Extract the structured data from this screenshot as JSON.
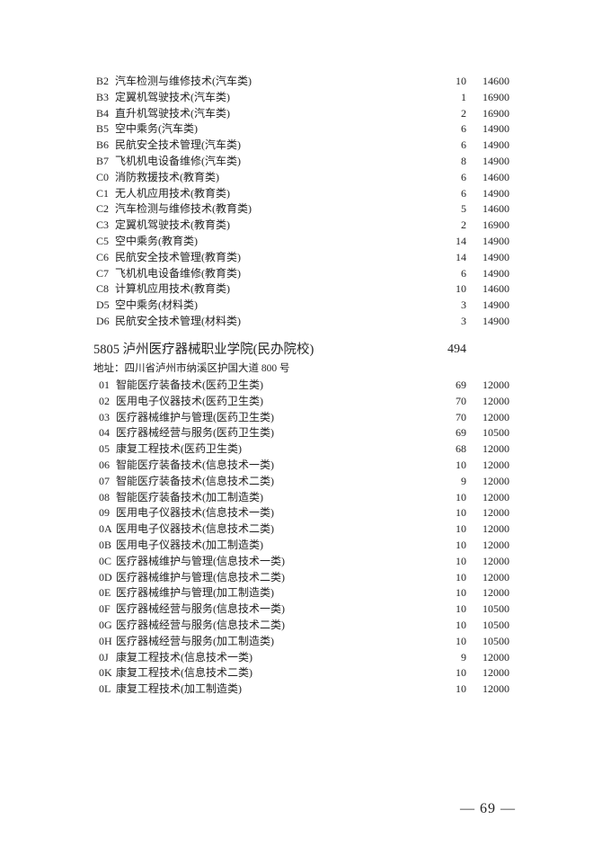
{
  "section_top": {
    "rows": [
      {
        "code": "B2",
        "name": "汽车检测与维修技术(汽车类)",
        "count": "10",
        "fee": "14600"
      },
      {
        "code": "B3",
        "name": "定翼机驾驶技术(汽车类)",
        "count": "1",
        "fee": "16900"
      },
      {
        "code": "B4",
        "name": "直升机驾驶技术(汽车类)",
        "count": "2",
        "fee": "16900"
      },
      {
        "code": "B5",
        "name": "空中乘务(汽车类)",
        "count": "6",
        "fee": "14900"
      },
      {
        "code": "B6",
        "name": "民航安全技术管理(汽车类)",
        "count": "6",
        "fee": "14900"
      },
      {
        "code": "B7",
        "name": "飞机机电设备维修(汽车类)",
        "count": "8",
        "fee": "14900"
      },
      {
        "code": "C0",
        "name": "消防救援技术(教育类)",
        "count": "6",
        "fee": "14600"
      },
      {
        "code": "C1",
        "name": "无人机应用技术(教育类)",
        "count": "6",
        "fee": "14900"
      },
      {
        "code": "C2",
        "name": "汽车检测与维修技术(教育类)",
        "count": "5",
        "fee": "14600"
      },
      {
        "code": "C3",
        "name": "定翼机驾驶技术(教育类)",
        "count": "2",
        "fee": "16900"
      },
      {
        "code": "C5",
        "name": "空中乘务(教育类)",
        "count": "14",
        "fee": "14900"
      },
      {
        "code": "C6",
        "name": "民航安全技术管理(教育类)",
        "count": "14",
        "fee": "14900"
      },
      {
        "code": "C7",
        "name": "飞机机电设备维修(教育类)",
        "count": "6",
        "fee": "14900"
      },
      {
        "code": "C8",
        "name": "计算机应用技术(教育类)",
        "count": "10",
        "fee": "14600"
      },
      {
        "code": "D5",
        "name": "空中乘务(材料类)",
        "count": "3",
        "fee": "14900"
      },
      {
        "code": "D6",
        "name": "民航安全技术管理(材料类)",
        "count": "3",
        "fee": "14900"
      }
    ]
  },
  "institution": {
    "title": "5805  泸州医疗器械职业学院(民办院校)",
    "total": "494",
    "address": "地址：四川省泸州市纳溪区护国大道 800 号",
    "rows": [
      {
        "code": "01",
        "name": "智能医疗装备技术(医药卫生类)",
        "count": "69",
        "fee": "12000"
      },
      {
        "code": "02",
        "name": "医用电子仪器技术(医药卫生类)",
        "count": "70",
        "fee": "12000"
      },
      {
        "code": "03",
        "name": "医疗器械维护与管理(医药卫生类)",
        "count": "70",
        "fee": "12000"
      },
      {
        "code": "04",
        "name": "医疗器械经营与服务(医药卫生类)",
        "count": "69",
        "fee": "10500"
      },
      {
        "code": "05",
        "name": "康复工程技术(医药卫生类)",
        "count": "68",
        "fee": "12000"
      },
      {
        "code": "06",
        "name": "智能医疗装备技术(信息技术一类)",
        "count": "10",
        "fee": "12000"
      },
      {
        "code": "07",
        "name": "智能医疗装备技术(信息技术二类)",
        "count": "9",
        "fee": "12000"
      },
      {
        "code": "08",
        "name": "智能医疗装备技术(加工制造类)",
        "count": "10",
        "fee": "12000"
      },
      {
        "code": "09",
        "name": "医用电子仪器技术(信息技术一类)",
        "count": "10",
        "fee": "12000"
      },
      {
        "code": "0A",
        "name": "医用电子仪器技术(信息技术二类)",
        "count": "10",
        "fee": "12000"
      },
      {
        "code": "0B",
        "name": "医用电子仪器技术(加工制造类)",
        "count": "10",
        "fee": "12000"
      },
      {
        "code": "0C",
        "name": "医疗器械维护与管理(信息技术一类)",
        "count": "10",
        "fee": "12000"
      },
      {
        "code": "0D",
        "name": "医疗器械维护与管理(信息技术二类)",
        "count": "10",
        "fee": "12000"
      },
      {
        "code": "0E",
        "name": "医疗器械维护与管理(加工制造类)",
        "count": "10",
        "fee": "12000"
      },
      {
        "code": "0F",
        "name": "医疗器械经营与服务(信息技术一类)",
        "count": "10",
        "fee": "10500"
      },
      {
        "code": "0G",
        "name": "医疗器械经营与服务(信息技术二类)",
        "count": "10",
        "fee": "10500"
      },
      {
        "code": "0H",
        "name": "医疗器械经营与服务(加工制造类)",
        "count": "10",
        "fee": "10500"
      },
      {
        "code": "0J",
        "name": "康复工程技术(信息技术一类)",
        "count": "9",
        "fee": "12000"
      },
      {
        "code": "0K",
        "name": "康复工程技术(信息技术二类)",
        "count": "10",
        "fee": "12000"
      },
      {
        "code": "0L",
        "name": "康复工程技术(加工制造类)",
        "count": "10",
        "fee": "12000"
      }
    ]
  },
  "page_number": "— 69 —"
}
